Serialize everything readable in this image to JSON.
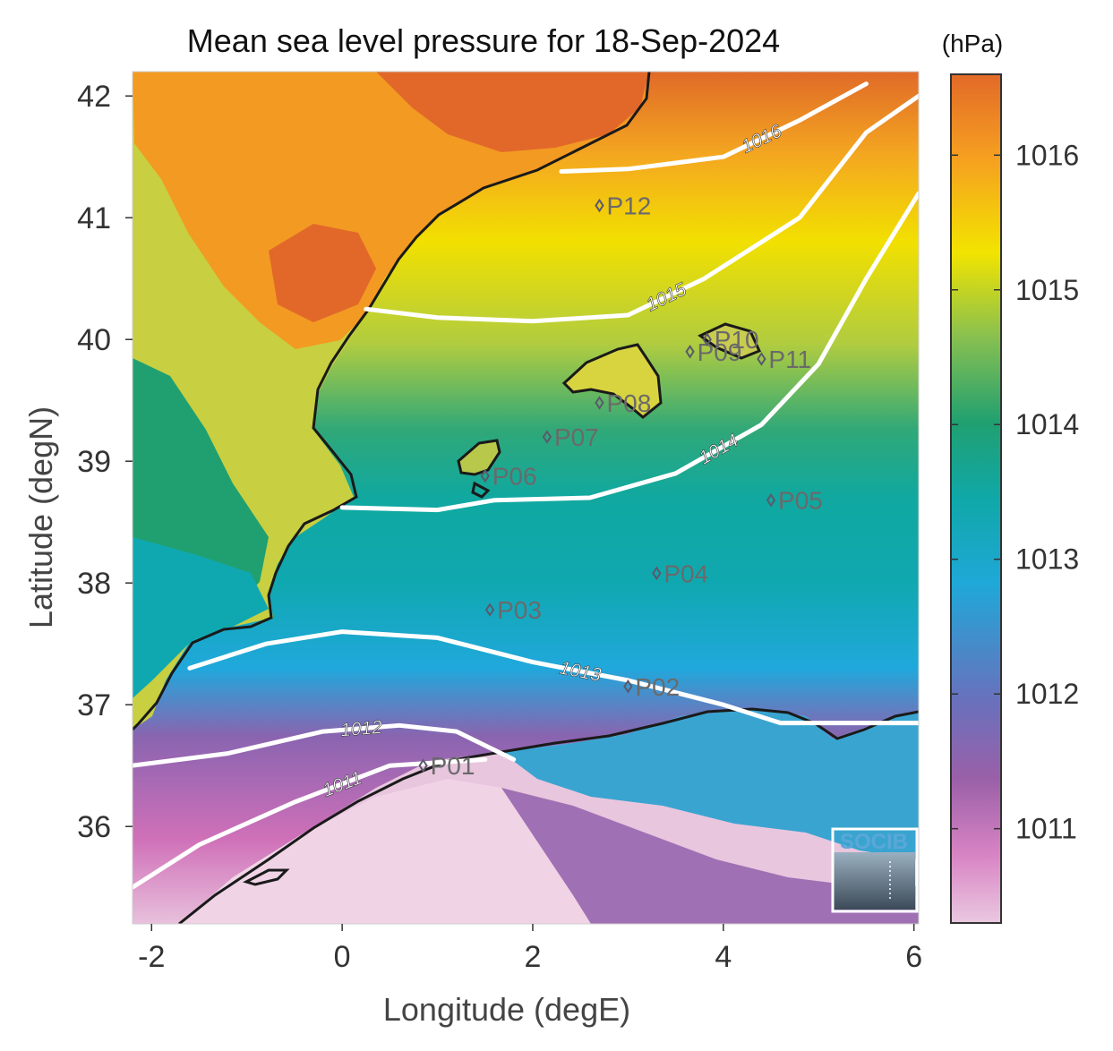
{
  "chart_data": {
    "type": "heatmap",
    "title": "Mean sea level pressure for 18-Sep-2024",
    "xlabel": "Longitude (degE)",
    "ylabel": "Latitude (degN)",
    "xlim": [
      -2.2,
      6.05
    ],
    "ylim": [
      35.2,
      42.2
    ],
    "x_ticks": [
      -2,
      0,
      2,
      4,
      6
    ],
    "y_ticks": [
      36,
      37,
      38,
      39,
      40,
      41,
      42
    ],
    "colorbar": {
      "unit": "(hPa)",
      "range": [
        1010.3,
        1016.6
      ],
      "ticks": [
        1011,
        1012,
        1013,
        1014,
        1015,
        1016
      ],
      "colors": [
        "#eac8e0",
        "#cf64b4",
        "#9a60a8",
        "#6a70bc",
        "#1fa8d8",
        "#10a8a8",
        "#20a070",
        "#88c050",
        "#f2e400",
        "#f6a020",
        "#e26a28"
      ]
    },
    "contours": [
      {
        "level": "1011",
        "points": [
          [
            -2.2,
            35.5
          ],
          [
            -1.5,
            35.85
          ],
          [
            -0.5,
            36.2
          ],
          [
            0.5,
            36.5
          ],
          [
            1.5,
            36.55
          ]
        ]
      },
      {
        "level": "1012",
        "points": [
          [
            -2.2,
            36.5
          ],
          [
            -1.2,
            36.6
          ],
          [
            -0.2,
            36.78
          ],
          [
            0.6,
            36.83
          ],
          [
            1.2,
            36.78
          ],
          [
            1.8,
            36.55
          ]
        ]
      },
      {
        "level": "1013",
        "points": [
          [
            -1.6,
            37.3
          ],
          [
            -0.8,
            37.5
          ],
          [
            0.0,
            37.6
          ],
          [
            1.0,
            37.55
          ],
          [
            2.0,
            37.35
          ],
          [
            3.0,
            37.2
          ],
          [
            4.0,
            37.0
          ],
          [
            4.6,
            36.85
          ],
          [
            6.05,
            36.85
          ]
        ]
      },
      {
        "level": "1014",
        "points": [
          [
            0.0,
            38.62
          ],
          [
            1.0,
            38.6
          ],
          [
            1.6,
            38.68
          ],
          [
            2.6,
            38.7
          ],
          [
            3.5,
            38.9
          ],
          [
            4.4,
            39.3
          ],
          [
            5.0,
            39.8
          ],
          [
            5.5,
            40.5
          ],
          [
            6.05,
            41.2
          ]
        ]
      },
      {
        "level": "1015",
        "points": [
          [
            0.25,
            40.25
          ],
          [
            1.0,
            40.18
          ],
          [
            2.0,
            40.15
          ],
          [
            3.0,
            40.2
          ],
          [
            3.8,
            40.5
          ],
          [
            4.8,
            41.0
          ],
          [
            5.5,
            41.7
          ],
          [
            6.05,
            42.0
          ]
        ]
      },
      {
        "level": "1016",
        "points": [
          [
            2.3,
            41.38
          ],
          [
            3.0,
            41.4
          ],
          [
            4.0,
            41.5
          ],
          [
            4.8,
            41.8
          ],
          [
            5.5,
            42.1
          ]
        ]
      }
    ],
    "stations": [
      {
        "name": "P01",
        "lon": 0.85,
        "lat": 36.5
      },
      {
        "name": "P02",
        "lon": 3.0,
        "lat": 37.15
      },
      {
        "name": "P03",
        "lon": 1.55,
        "lat": 37.78
      },
      {
        "name": "P04",
        "lon": 3.3,
        "lat": 38.08
      },
      {
        "name": "P05",
        "lon": 4.5,
        "lat": 38.68
      },
      {
        "name": "P06",
        "lon": 1.5,
        "lat": 38.88
      },
      {
        "name": "P07",
        "lon": 2.15,
        "lat": 39.2
      },
      {
        "name": "P08",
        "lon": 2.7,
        "lat": 39.48
      },
      {
        "name": "P09",
        "lon": 3.65,
        "lat": 39.9
      },
      {
        "name": "P10",
        "lon": 3.83,
        "lat": 40.0
      },
      {
        "name": "P11",
        "lon": 4.4,
        "lat": 39.84
      },
      {
        "name": "P12",
        "lon": 2.7,
        "lat": 41.1
      }
    ],
    "logo": "SOCIB"
  }
}
